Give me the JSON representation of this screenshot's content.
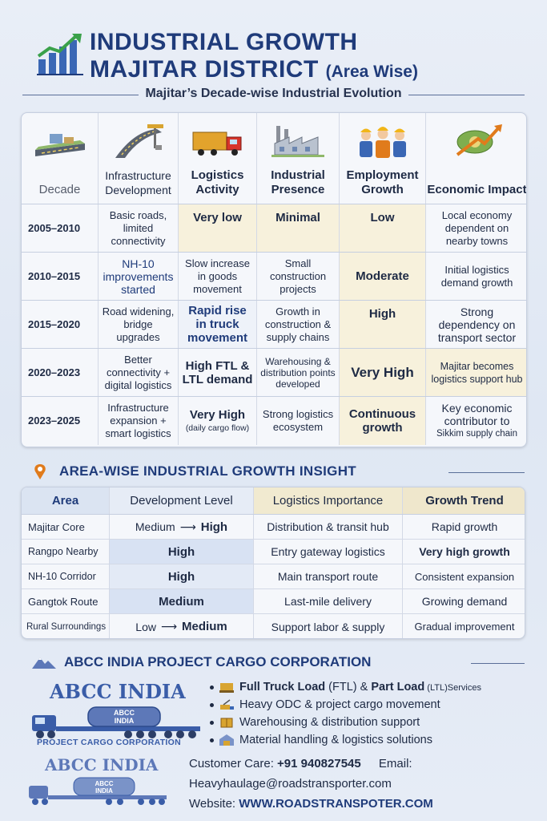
{
  "header": {
    "title_line1": "INDUSTRIAL GROWTH",
    "title_line2": "MAJITAR DISTRICT",
    "title_suffix": "(Area Wise)",
    "subtitle": "Majitar’s Decade-wise Industrial Evolution"
  },
  "decade_table": {
    "headers": [
      {
        "label": "Decade",
        "icon": "road-icon"
      },
      {
        "label": "Infrastructure Development",
        "icon": "highway-icon"
      },
      {
        "label": "Logistics Activity",
        "icon": "truck-icon"
      },
      {
        "label": "Industrial Presence",
        "icon": "factory-icon"
      },
      {
        "label": "Employment Growth",
        "icon": "workers-icon"
      },
      {
        "label": "Economic Impact",
        "icon": "money-growth-icon"
      }
    ],
    "rows": [
      {
        "decade": "2005–2010",
        "infra": "Basic roads, limited connectivity",
        "logistics": "Very low",
        "industrial": "Minimal",
        "employment": "Low",
        "economic": "Local economy dependent on nearby towns"
      },
      {
        "decade": "2010–2015",
        "infra": "NH-10 improvements started",
        "logistics": "Slow increase in goods movement",
        "industrial": "Small construction projects",
        "employment": "Moderate",
        "economic": "Initial logistics demand growth"
      },
      {
        "decade": "2015–2020",
        "infra": "Road widening, bridge upgrades",
        "logistics": "Rapid rise in truck movement",
        "industrial": "Growth in construction & supply chains",
        "employment": "High",
        "economic": "Strong dependency on transport sector"
      },
      {
        "decade": "2020–2023",
        "infra": "Better connectivity + digital logistics",
        "logistics": "High FTL & LTL demand",
        "industrial": "Warehousing & distribution points developed",
        "employment": "Very High",
        "economic": "Majitar becomes logistics support hub"
      },
      {
        "decade": "2023–2025",
        "infra": "Infrastructure expansion + smart logistics",
        "logistics": "Very High",
        "logistics_note": "(daily cargo flow)",
        "industrial": "Strong logistics ecosystem",
        "employment": "Continuous growth",
        "economic": "Key economic contributor to",
        "economic_note": "Sikkim supply chain"
      }
    ]
  },
  "area_section": {
    "title": "AREA-WISE INDUSTRIAL GROWTH INSIGHT",
    "headers": [
      "Area",
      "Development Level",
      "Logistics Importance",
      "Growth Trend"
    ],
    "rows": [
      {
        "area": "Majitar Core",
        "dev_from": "Medium",
        "dev_to": "High",
        "importance": "Distribution & transit hub",
        "trend": "Rapid growth"
      },
      {
        "area": "Rangpo Nearby",
        "dev": "High",
        "importance": "Entry gateway logistics",
        "trend": "Very high growth"
      },
      {
        "area": "NH-10 Corridor",
        "dev": "High",
        "importance": "Main transport route",
        "trend": "Consistent expansion"
      },
      {
        "area": "Gangtok Route",
        "dev": "Medium",
        "importance": "Last-mile delivery",
        "trend": "Growing demand"
      },
      {
        "area": "Rural Surroundings",
        "dev_from": "Low",
        "dev_to": "Medium",
        "importance": "Support labor & supply",
        "trend": "Gradual improvement"
      }
    ]
  },
  "company": {
    "title": "ABCC INDIA PROJECT CARGO CORPORATION",
    "brand_name": "ABCC INDIA",
    "truck_label_1": "ABCC",
    "truck_label_2": "INDIA",
    "brand_subtitle": "PROJECT CARGO CORPORATION",
    "services": [
      {
        "bold": "Full Truck Load",
        "p1": " (FTL) & ",
        "bold2": "Part Load",
        "p2": " (LTL)",
        "p3": "Services"
      },
      {
        "text": "Heavy ODC & project cargo movement"
      },
      {
        "text": "Warehousing & distribution support"
      },
      {
        "text": "Material handling & logistics solutions"
      }
    ],
    "contact": {
      "care_label": "Customer Care:",
      "care_value": "+91 940827545",
      "email_label": "Email:",
      "email_value": "Heavyhaulage@roadstransporter.com",
      "website_label": "Website:",
      "website_value": "WWW.ROADSTRANSPOTER.COM"
    }
  },
  "colors": {
    "primary": "#1f3b7a",
    "accent_orange": "#e07b1c",
    "tint_gold": "#f7f1dc"
  }
}
